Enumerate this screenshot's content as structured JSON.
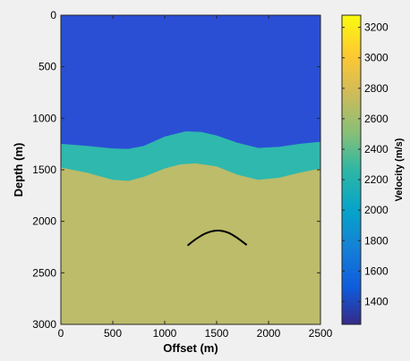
{
  "chart_data": {
    "type": "heatmap",
    "title": "",
    "xlabel": "Offset (m)",
    "ylabel": "Depth (m)",
    "xlim": [
      0,
      2500
    ],
    "ylim": [
      3000,
      0
    ],
    "y_reversed": true,
    "xticks": [
      0,
      500,
      1000,
      1500,
      2000,
      2500
    ],
    "yticks": [
      0,
      500,
      1000,
      1500,
      2000,
      2500,
      3000
    ],
    "colorbar": {
      "label": "Velocity (m/s)",
      "range": [
        1250,
        3280
      ],
      "ticks": [
        1400,
        1600,
        1800,
        2000,
        2200,
        2400,
        2600,
        2800,
        3000,
        3200
      ],
      "colormap": "parula"
    },
    "layers": [
      {
        "velocity": 1500,
        "color": "#2a4fd5",
        "top": [
          [
            0,
            0
          ],
          [
            2500,
            0
          ]
        ],
        "bottom": [
          [
            0,
            1250
          ],
          [
            250,
            1270
          ],
          [
            500,
            1295
          ],
          [
            650,
            1300
          ],
          [
            800,
            1270
          ],
          [
            1000,
            1180
          ],
          [
            1200,
            1130
          ],
          [
            1350,
            1135
          ],
          [
            1500,
            1170
          ],
          [
            1700,
            1240
          ],
          [
            1900,
            1290
          ],
          [
            2100,
            1280
          ],
          [
            2300,
            1250
          ],
          [
            2500,
            1230
          ]
        ]
      },
      {
        "velocity": 2300,
        "color": "#2fb8ae",
        "top": [
          [
            0,
            1250
          ],
          [
            250,
            1270
          ],
          [
            500,
            1295
          ],
          [
            650,
            1300
          ],
          [
            800,
            1270
          ],
          [
            1000,
            1180
          ],
          [
            1200,
            1130
          ],
          [
            1350,
            1135
          ],
          [
            1500,
            1170
          ],
          [
            1700,
            1240
          ],
          [
            1900,
            1290
          ],
          [
            2100,
            1280
          ],
          [
            2300,
            1250
          ],
          [
            2500,
            1230
          ]
        ],
        "bottom": [
          [
            0,
            1480
          ],
          [
            250,
            1530
          ],
          [
            500,
            1600
          ],
          [
            650,
            1610
          ],
          [
            800,
            1570
          ],
          [
            1000,
            1490
          ],
          [
            1150,
            1450
          ],
          [
            1300,
            1440
          ],
          [
            1500,
            1470
          ],
          [
            1700,
            1550
          ],
          [
            1900,
            1600
          ],
          [
            2100,
            1580
          ],
          [
            2300,
            1530
          ],
          [
            2500,
            1490
          ]
        ]
      },
      {
        "velocity": 2600,
        "color": "#bcbc6a",
        "top": [
          [
            0,
            1480
          ],
          [
            250,
            1530
          ],
          [
            500,
            1600
          ],
          [
            650,
            1610
          ],
          [
            800,
            1570
          ],
          [
            1000,
            1490
          ],
          [
            1150,
            1450
          ],
          [
            1300,
            1440
          ],
          [
            1500,
            1470
          ],
          [
            1700,
            1550
          ],
          [
            1900,
            1600
          ],
          [
            2100,
            1580
          ],
          [
            2300,
            1530
          ],
          [
            2500,
            1490
          ]
        ],
        "bottom": [
          [
            0,
            3000
          ],
          [
            2500,
            3000
          ]
        ]
      }
    ],
    "annotation_curve": {
      "color": "#000000",
      "points": [
        [
          1220,
          2235
        ],
        [
          1300,
          2170
        ],
        [
          1400,
          2110
        ],
        [
          1500,
          2085
        ],
        [
          1600,
          2100
        ],
        [
          1700,
          2160
        ],
        [
          1790,
          2230
        ]
      ]
    }
  }
}
